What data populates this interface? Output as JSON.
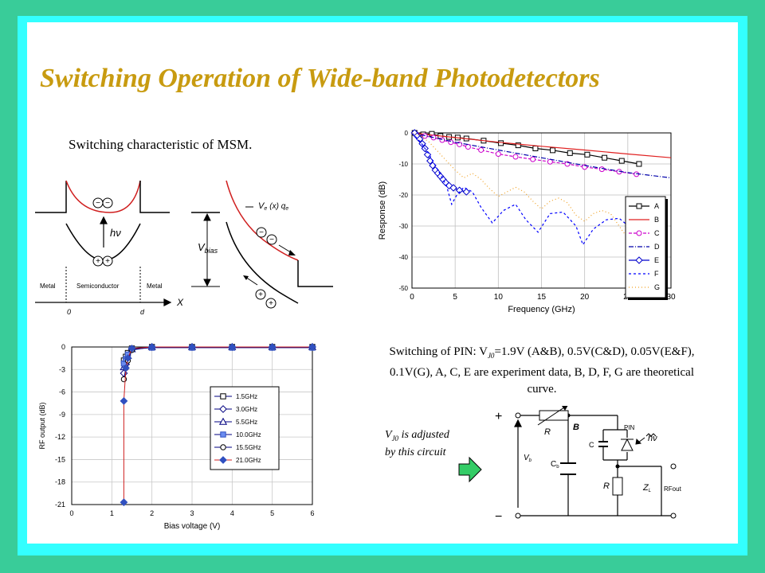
{
  "title": "Switching Operation of Wide-band Photodetectors",
  "msm_caption": "Switching characteristic  of MSM.",
  "band_diagram": {
    "labels": {
      "metal_left": "Metal",
      "semiconductor": "Semiconductor",
      "metal_right": "Metal",
      "origin": "0",
      "d": "d",
      "x_axis": "X",
      "hv": "hν",
      "vbias_v": "V",
      "vbias_sub": "bias",
      "ve": "V",
      "ve_sub": "e",
      "ve_rest": "(x) q",
      "qe_sub": "e"
    }
  },
  "pin_caption": {
    "part1": "Switching of PIN: V",
    "sub": "J0",
    "part2": "=1.9V (A&B), 0.5V(C&D), 0.05V(E&F), 0.1V(G), A, C, E are experiment data, B, D, F, G are theoretical curve."
  },
  "vj0_note": {
    "v": "V",
    "sub": "J0",
    "rest": " is adjusted by this circuit"
  },
  "circuit": {
    "labels": {
      "plus": "+",
      "minus": "−",
      "r_top": "R",
      "b": "B",
      "pin": "PIN",
      "c": "C",
      "hv": "hν",
      "vb": "V",
      "vb_sub": "b",
      "cb": "C",
      "cb_sub": "b",
      "r_bottom": "R",
      "zl": "Z",
      "zl_sub": "L",
      "rfout": "RFout"
    }
  },
  "chart_data": [
    {
      "type": "line",
      "id": "pin-frequency-response",
      "xlabel": "Frequency (GHz)",
      "ylabel": "Response (dB)",
      "xlim": [
        0,
        30
      ],
      "ylim": [
        -50,
        0
      ],
      "xticks": [
        0,
        5,
        10,
        15,
        20,
        25,
        30
      ],
      "yticks": [
        0,
        -10,
        -20,
        -30,
        -40,
        -50
      ],
      "legend_position": "right",
      "series": [
        {
          "name": "A",
          "color": "#000000",
          "style": "line-square",
          "x": [
            0.3,
            1.3,
            2.3,
            3.3,
            4.3,
            5.3,
            6.3,
            8.3,
            10.3,
            12.3,
            14.3,
            16.3,
            18.3,
            20.3,
            22.3,
            24.3,
            26.3
          ],
          "y": [
            0,
            -0.5,
            -0.3,
            -1,
            -1.3,
            -1.5,
            -1.8,
            -2.5,
            -3.3,
            -4,
            -5,
            -5.6,
            -6.5,
            -7,
            -8,
            -9,
            -10
          ]
        },
        {
          "name": "B",
          "color": "#e02020",
          "style": "line",
          "x": [
            0,
            5,
            10,
            15,
            20,
            25,
            30
          ],
          "y": [
            0,
            -1.5,
            -3,
            -4.3,
            -5.5,
            -6.8,
            -8
          ]
        },
        {
          "name": "C",
          "color": "#cc00cc",
          "style": "line-circle",
          "x": [
            0.5,
            1.5,
            2.5,
            3.5,
            4.5,
            5.5,
            6.5,
            8,
            10,
            12,
            14,
            16,
            18,
            20,
            22,
            24,
            26
          ],
          "y": [
            -0.5,
            -1,
            -1.5,
            -2.3,
            -3,
            -3.7,
            -4.5,
            -5.5,
            -6.8,
            -7.7,
            -8.5,
            -9.3,
            -10,
            -11,
            -11.7,
            -12.5,
            -13.3
          ]
        },
        {
          "name": "D",
          "color": "#0000aa",
          "style": "dashdot",
          "x": [
            0,
            5,
            10,
            15,
            20,
            25,
            30
          ],
          "y": [
            0,
            -3,
            -5.5,
            -8,
            -10.5,
            -12.8,
            -14.5
          ]
        },
        {
          "name": "E",
          "color": "#0000cc",
          "style": "line-diamond",
          "x": [
            0.3,
            0.6,
            0.9,
            1.2,
            1.5,
            1.8,
            2.1,
            2.4,
            2.7,
            3.0,
            3.3,
            3.6,
            3.9,
            4.3,
            4.8,
            5.5,
            6.3
          ],
          "y": [
            0,
            -1,
            -2,
            -3.5,
            -5,
            -7,
            -9,
            -10.5,
            -12,
            -13,
            -14,
            -15,
            -16,
            -17,
            -17.7,
            -18.5,
            -19
          ]
        },
        {
          "name": "F",
          "color": "#0000ff",
          "style": "dash",
          "x": [
            0,
            1,
            2,
            3,
            4,
            4.6,
            5.2,
            6,
            7,
            8,
            9.3,
            10.6,
            12,
            13.2,
            14.6,
            16,
            17.5,
            19,
            19.8,
            21,
            22.5,
            24,
            25.5,
            27
          ],
          "y": [
            0,
            -3,
            -7,
            -12,
            -17,
            -23,
            -20,
            -17.5,
            -19,
            -24,
            -29,
            -25,
            -23,
            -28,
            -32,
            -26,
            -25.5,
            -30,
            -36,
            -31,
            -28,
            -27.5,
            -31,
            -38
          ]
        },
        {
          "name": "G",
          "color": "#f0a020",
          "style": "dot",
          "x": [
            0,
            1,
            2,
            3,
            4,
            5,
            6,
            7,
            8,
            9,
            10,
            11,
            12,
            13,
            14,
            15,
            16,
            17,
            18,
            19,
            20,
            21,
            22,
            23,
            24,
            25,
            26
          ],
          "y": [
            0,
            -1,
            -3,
            -6,
            -9,
            -12,
            -14.5,
            -13,
            -15,
            -18,
            -20.5,
            -19,
            -17.5,
            -19,
            -22,
            -24.5,
            -22,
            -21,
            -22.5,
            -26.5,
            -28.5,
            -26,
            -25,
            -26,
            -30,
            -34,
            -34
          ]
        }
      ]
    },
    {
      "type": "line",
      "id": "msm-bias-switching",
      "xlabel": "Bias voltage (V)",
      "ylabel": "RF output (dB)",
      "xlim": [
        0,
        6
      ],
      "ylim": [
        -21,
        0
      ],
      "xticks": [
        0,
        1,
        2,
        3,
        4,
        5,
        6
      ],
      "yticks": [
        0,
        -3,
        -6,
        -9,
        -12,
        -15,
        -18,
        -21
      ],
      "legend_position": "right",
      "series": [
        {
          "name": "1.5GHz",
          "marker": "square-open",
          "x": [
            1.3,
            1.35,
            1.4,
            1.5,
            2,
            3,
            4,
            5,
            6
          ],
          "y": [
            -1.8,
            -1.3,
            -0.8,
            -0.2,
            0,
            0,
            0,
            0,
            0
          ]
        },
        {
          "name": "3.0GHz",
          "marker": "diamond-open",
          "x": [
            1.3,
            1.35,
            1.4,
            1.5,
            2,
            3,
            4,
            5,
            6
          ],
          "y": [
            -3.5,
            -2.3,
            -1.5,
            -0.3,
            0,
            0,
            0,
            0,
            0
          ]
        },
        {
          "name": "5.5GHz",
          "marker": "triangle-open",
          "x": [
            1.3,
            1.35,
            1.4,
            1.5,
            2,
            3,
            4,
            5,
            6
          ],
          "y": [
            -2.7,
            -2,
            -1.2,
            -0.3,
            0,
            0,
            0,
            0,
            0
          ]
        },
        {
          "name": "10.0GHz",
          "marker": "square-filled",
          "x": [
            1.3,
            1.35,
            1.4,
            1.5,
            2,
            3,
            4,
            5,
            6
          ],
          "y": [
            -2.2,
            -1.6,
            -1,
            -0.3,
            -0.1,
            -0.1,
            -0.1,
            -0.1,
            -0.1
          ]
        },
        {
          "name": "15.5GHz",
          "marker": "circle-open",
          "x": [
            1.3,
            1.35,
            1.4,
            1.5,
            2,
            3,
            4,
            5,
            6
          ],
          "y": [
            -4.3,
            -2.8,
            -1.8,
            -0.4,
            0,
            0,
            0,
            0,
            0
          ]
        },
        {
          "name": "21.0GHz",
          "marker": "diamond-filled",
          "x": [
            1.3,
            1.3,
            1.35,
            1.4,
            1.5,
            2,
            3,
            4,
            5,
            6
          ],
          "y": [
            -20.7,
            -7.2,
            -2.8,
            -1.5,
            -0.2,
            0,
            0,
            0,
            0,
            0
          ]
        }
      ]
    }
  ]
}
